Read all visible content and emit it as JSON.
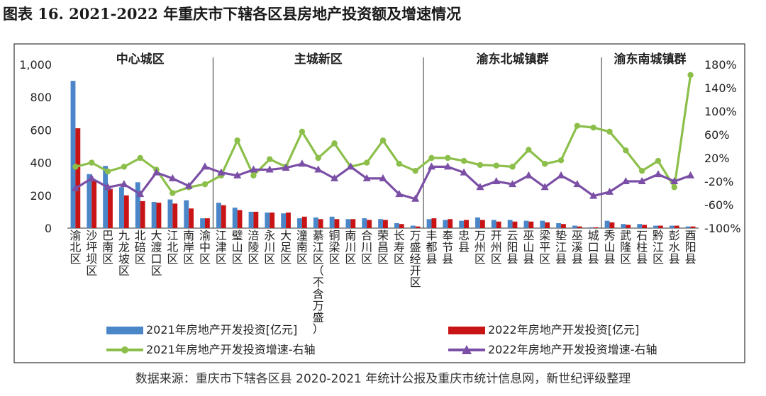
{
  "title": "图表 16. 2021-2022 年重庆市下辖各区县房地产投资额及增速情况",
  "source": "数据来源：重庆市下辖各区县 2020-2021 年统计公报及重庆市统计信息网，新世纪评级整理",
  "chart_data": {
    "type": "bar+line",
    "categories": [
      "渝北区",
      "沙坪坝区",
      "巴南区",
      "九龙坡区",
      "北碚区",
      "大渡口区",
      "江北区",
      "南岸区",
      "渝中区",
      "江津区",
      "璧山区",
      "涪陵区",
      "永川区",
      "大足区",
      "潼南区",
      "綦江区（不含万盛）",
      "铜梁区",
      "南川区",
      "合川区",
      "荣昌区",
      "长寿区",
      "万盛经开区",
      "丰都县",
      "奉节县",
      "忠县",
      "万州区",
      "开州区",
      "云阳县",
      "巫山县",
      "梁平区",
      "垫江县",
      "巫溪县",
      "城口县",
      "秀山县",
      "武隆区",
      "石柱县",
      "黔江区",
      "彭水县",
      "酉阳县"
    ],
    "groups": [
      {
        "label": "中心城区"
      },
      {
        "label": "主城新区"
      },
      {
        "label": "渝东北城镇群"
      },
      {
        "label": "渝东南城镇群"
      }
    ],
    "group_bounds": [
      0,
      9,
      22,
      33,
      39
    ],
    "left_axis": {
      "min": 0,
      "max": 1000,
      "ticks": [
        0,
        200,
        400,
        600,
        800,
        1000
      ],
      "tick_labels": [
        "0",
        "200",
        "400",
        "600",
        "800",
        "1,000"
      ]
    },
    "right_axis": {
      "min": -100,
      "max": 180,
      "ticks": [
        -100,
        -60,
        -20,
        20,
        60,
        100,
        140,
        180
      ],
      "tick_labels": [
        "-100%",
        "-60%",
        "-20%",
        "20%",
        "60%",
        "100%",
        "140%",
        "180%"
      ]
    },
    "series": [
      {
        "name": "2021年房地产开发投资[亿元]",
        "type": "bar",
        "axis": "left",
        "color": "#4a86c8",
        "values": [
          900,
          330,
          380,
          250,
          280,
          160,
          175,
          170,
          60,
          155,
          125,
          100,
          95,
          90,
          60,
          65,
          70,
          55,
          60,
          55,
          30,
          15,
          55,
          50,
          45,
          65,
          50,
          50,
          45,
          45,
          30,
          15,
          5,
          45,
          25,
          25,
          15,
          15,
          10
        ]
      },
      {
        "name": "2022年房地产开发投资[亿元]",
        "type": "bar",
        "axis": "left",
        "color": "#c81414",
        "values": [
          610,
          290,
          240,
          200,
          165,
          155,
          150,
          120,
          60,
          140,
          110,
          100,
          95,
          95,
          70,
          55,
          55,
          55,
          50,
          50,
          25,
          10,
          60,
          55,
          50,
          50,
          40,
          40,
          40,
          35,
          25,
          10,
          5,
          35,
          20,
          20,
          15,
          15,
          10
        ]
      },
      {
        "name": "2021年房地产开发投资增速-右轴",
        "type": "line",
        "axis": "right",
        "color": "#8cbf4a",
        "marker": "circle",
        "values": [
          5,
          12,
          -3,
          5,
          20,
          0,
          -40,
          -30,
          -25,
          -10,
          50,
          -10,
          18,
          5,
          65,
          20,
          45,
          5,
          12,
          50,
          10,
          -2,
          20,
          20,
          15,
          8,
          7,
          5,
          34,
          10,
          16,
          75,
          72,
          65,
          33,
          -2,
          15,
          -30,
          162
        ]
      },
      {
        "name": "2022年房地产开发投资增速-右轴",
        "type": "line",
        "axis": "right",
        "color": "#7b4fa6",
        "marker": "triangle",
        "values": [
          -32,
          -15,
          -30,
          -25,
          -42,
          -5,
          -15,
          -28,
          5,
          -5,
          -10,
          0,
          0,
          3,
          10,
          0,
          -15,
          5,
          -15,
          -15,
          -42,
          -50,
          5,
          5,
          -5,
          -30,
          -20,
          -25,
          -10,
          -30,
          -10,
          -25,
          -45,
          -38,
          -20,
          -20,
          -8,
          -20,
          -10
        ]
      }
    ]
  }
}
